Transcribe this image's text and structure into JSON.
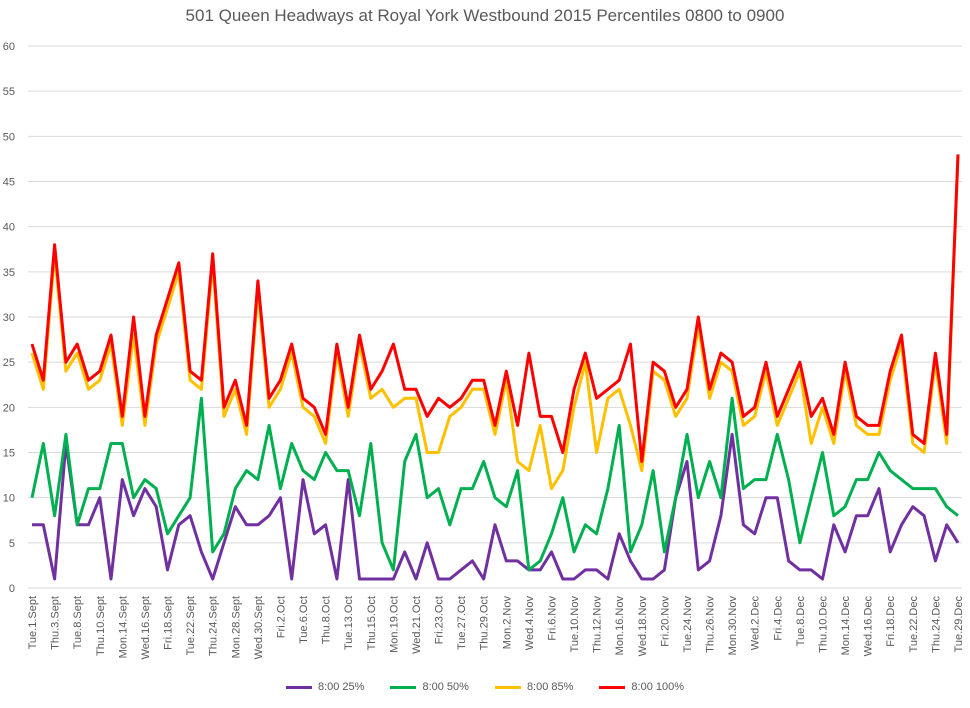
{
  "chart_data": {
    "type": "line",
    "title": "501 Queen Headways at Royal York Westbound 2015 Percentiles 0800 to 0900",
    "xlabel": "",
    "ylabel": "",
    "ylim": [
      0,
      60
    ],
    "yticks": [
      0,
      5,
      10,
      15,
      20,
      25,
      30,
      35,
      40,
      45,
      50,
      55,
      60
    ],
    "grid": true,
    "legend_position": "bottom",
    "x_tick_labels": [
      "Tue.1.Sept",
      "Thu.3.Sept",
      "Tue.8.Sept",
      "Thu.10.Sept",
      "Mon.14.Sept",
      "Wed.16.Sept",
      "Fri.18.Sept",
      "Tue.22.Sept",
      "Thu.24.Sept",
      "Mon.28.Sept",
      "Wed.30.Sept",
      "Fri.2.Oct",
      "Tue.6.Oct",
      "Thu.8.Oct",
      "Tue.13.Oct",
      "Thu.15.Oct",
      "Mon.19.Oct",
      "Wed.21.Oct",
      "Fri.23.Oct",
      "Tue.27.Oct",
      "Thu.29.Oct",
      "Mon.2.Nov",
      "Wed.4.Nov",
      "Fri.6.Nov",
      "Tue.10.Nov",
      "Thu.12.Nov",
      "Mon.16.Nov",
      "Wed.18.Nov",
      "Fri.20.Nov",
      "Tue.24.Nov",
      "Thu.26.Nov",
      "Mon.30.Nov",
      "Wed.2.Dec",
      "Fri.4.Dec",
      "Tue.8.Dec",
      "Thu.10.Dec",
      "Mon.14.Dec",
      "Wed.16.Dec",
      "Fri.18.Dec",
      "Tue.22.Dec",
      "Thu.24.Dec",
      "Tue.29.Dec"
    ],
    "x_tick_every": 2,
    "series": [
      {
        "name": "8:00 25%",
        "color": "#7030a0",
        "values": [
          7,
          7,
          1,
          16,
          7,
          7,
          10,
          1,
          12,
          8,
          11,
          9,
          2,
          7,
          8,
          4,
          1,
          5,
          9,
          7,
          7,
          8,
          10,
          1,
          12,
          6,
          7,
          1,
          12,
          1,
          1,
          1,
          1,
          4,
          1,
          5,
          1,
          1,
          2,
          3,
          1,
          7,
          3,
          3,
          2,
          2,
          4,
          1,
          1,
          2,
          2,
          1,
          6,
          3,
          1,
          1,
          2,
          10,
          14,
          2,
          3,
          8,
          17,
          7,
          6,
          10,
          10,
          3,
          2,
          2,
          1,
          7,
          4,
          8,
          8,
          11,
          4,
          7,
          9,
          8,
          3,
          7,
          5
        ]
      },
      {
        "name": "8:00 50%",
        "color": "#00b050",
        "values": [
          10,
          16,
          8,
          17,
          7,
          11,
          11,
          16,
          16,
          10,
          12,
          11,
          6,
          8,
          10,
          21,
          4,
          6,
          11,
          13,
          12,
          18,
          11,
          16,
          13,
          12,
          15,
          13,
          13,
          8,
          16,
          5,
          2,
          14,
          17,
          10,
          11,
          7,
          11,
          11,
          14,
          10,
          9,
          13,
          2,
          3,
          6,
          10,
          4,
          7,
          6,
          11,
          18,
          4,
          7,
          13,
          4,
          10,
          17,
          10,
          14,
          10,
          21,
          11,
          12,
          12,
          17,
          12,
          5,
          10,
          15,
          8,
          9,
          12,
          12,
          15,
          13,
          12,
          11,
          11,
          11,
          9,
          8
        ]
      },
      {
        "name": "8:00 85%",
        "color": "#ffc000",
        "values": [
          26,
          22,
          37,
          24,
          26,
          22,
          23,
          27,
          18,
          28,
          18,
          27,
          31,
          35,
          23,
          22,
          36,
          19,
          22,
          17,
          33,
          20,
          22,
          26,
          20,
          19,
          16,
          26,
          19,
          27,
          21,
          22,
          20,
          21,
          21,
          15,
          15,
          19,
          20,
          22,
          22,
          17,
          23,
          14,
          13,
          18,
          11,
          13,
          20,
          25,
          15,
          21,
          22,
          18,
          13,
          24,
          23,
          19,
          21,
          29,
          21,
          25,
          24,
          18,
          19,
          24,
          18,
          21,
          24,
          16,
          20,
          16,
          24,
          18,
          17,
          17,
          23,
          27,
          16,
          15,
          25,
          16,
          48
        ]
      },
      {
        "name": "8:00 100%",
        "color": "#ff0000",
        "values": [
          27,
          23,
          38,
          25,
          27,
          23,
          24,
          28,
          19,
          30,
          19,
          28,
          32,
          36,
          24,
          23,
          37,
          20,
          23,
          18,
          34,
          21,
          23,
          27,
          21,
          20,
          17,
          27,
          20,
          28,
          22,
          24,
          27,
          22,
          22,
          19,
          21,
          20,
          21,
          23,
          23,
          18,
          24,
          18,
          26,
          19,
          19,
          15,
          22,
          26,
          21,
          22,
          23,
          27,
          14,
          25,
          24,
          20,
          22,
          30,
          22,
          26,
          25,
          19,
          20,
          25,
          19,
          22,
          25,
          19,
          21,
          17,
          25,
          19,
          18,
          18,
          24,
          28,
          17,
          16,
          26,
          17,
          48
        ]
      }
    ]
  }
}
